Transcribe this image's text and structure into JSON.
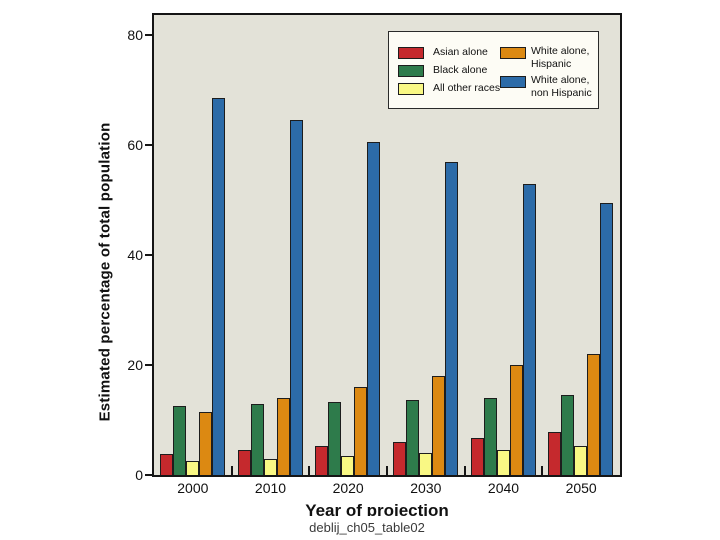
{
  "page": {
    "caption": "deblij_ch05_table02"
  },
  "chart_data": {
    "type": "bar",
    "title": "",
    "xlabel": "Year of projection",
    "ylabel": "Estimated percentage of total population",
    "categories": [
      "2000",
      "2010",
      "2020",
      "2030",
      "2040",
      "2050"
    ],
    "series": [
      {
        "name": "Asian alone",
        "color": "#c5292d",
        "values": [
          3.8,
          4.5,
          5.2,
          6.0,
          6.8,
          7.8
        ]
      },
      {
        "name": "Black alone",
        "color": "#2e7b4b",
        "values": [
          12.5,
          13.0,
          13.2,
          13.6,
          14.0,
          14.5
        ]
      },
      {
        "name": "All other races",
        "color": "#f9f884",
        "values": [
          2.5,
          3.0,
          3.4,
          4.0,
          4.5,
          5.2
        ]
      },
      {
        "name": "White alone, Hispanic",
        "color": "#dc8912",
        "values": [
          11.5,
          14.0,
          16.0,
          18.0,
          20.0,
          22.0
        ]
      },
      {
        "name": "White alone, non Hispanic",
        "color": "#2c6ba8",
        "values": [
          68.5,
          64.5,
          60.5,
          57.0,
          53.0,
          49.5
        ]
      }
    ],
    "ylim": [
      0,
      80
    ],
    "yticks": [
      0,
      20,
      40,
      60,
      80
    ],
    "grid": false,
    "legend_position": "top-right",
    "legend_columns": [
      [
        0,
        1,
        2
      ],
      [
        3,
        4
      ]
    ],
    "plot_background": "#e3e2d8",
    "axis_color": "#151515"
  }
}
